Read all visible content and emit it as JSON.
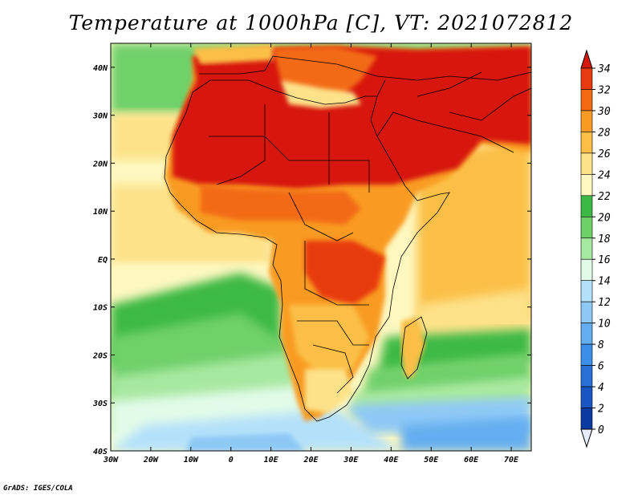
{
  "title": "Temperature at 1000hPa [C], VT: 2021072812",
  "credit": "GrADS: IGES/COLA",
  "map": {
    "projection": "latlon",
    "lon_range": [
      -30,
      75
    ],
    "lat_range": [
      -40,
      45
    ],
    "lon_ticks": [
      "30W",
      "20W",
      "10W",
      "0",
      "10E",
      "20E",
      "30E",
      "40E",
      "50E",
      "60E",
      "70E"
    ],
    "lon_tick_values": [
      -30,
      -20,
      -10,
      0,
      10,
      20,
      30,
      40,
      50,
      60,
      70
    ],
    "lat_ticks": [
      "40N",
      "30N",
      "20N",
      "10N",
      "EQ",
      "10S",
      "20S",
      "30S",
      "40S"
    ],
    "lat_tick_values": [
      40,
      30,
      20,
      10,
      0,
      -10,
      -20,
      -30,
      -40
    ]
  },
  "colorbar": {
    "labels": [
      "34",
      "32",
      "30",
      "28",
      "26",
      "24",
      "22",
      "20",
      "18",
      "16",
      "14",
      "12",
      "10",
      "8",
      "6",
      "4",
      "2",
      "0"
    ],
    "colors": [
      "#d7160d",
      "#e83a10",
      "#f36a12",
      "#f99b22",
      "#fbbf47",
      "#fde28a",
      "#fef8c0",
      "#3cb944",
      "#6fd06a",
      "#a7e8a0",
      "#e2fbe9",
      "#b4e1fa",
      "#8ec9f6",
      "#64adf1",
      "#3d8ee8",
      "#2870d8",
      "#1a55c4",
      "#0b3aa3",
      "#072284"
    ],
    "above_color": "#d7160d",
    "below_color": "#e6ecfb"
  }
}
